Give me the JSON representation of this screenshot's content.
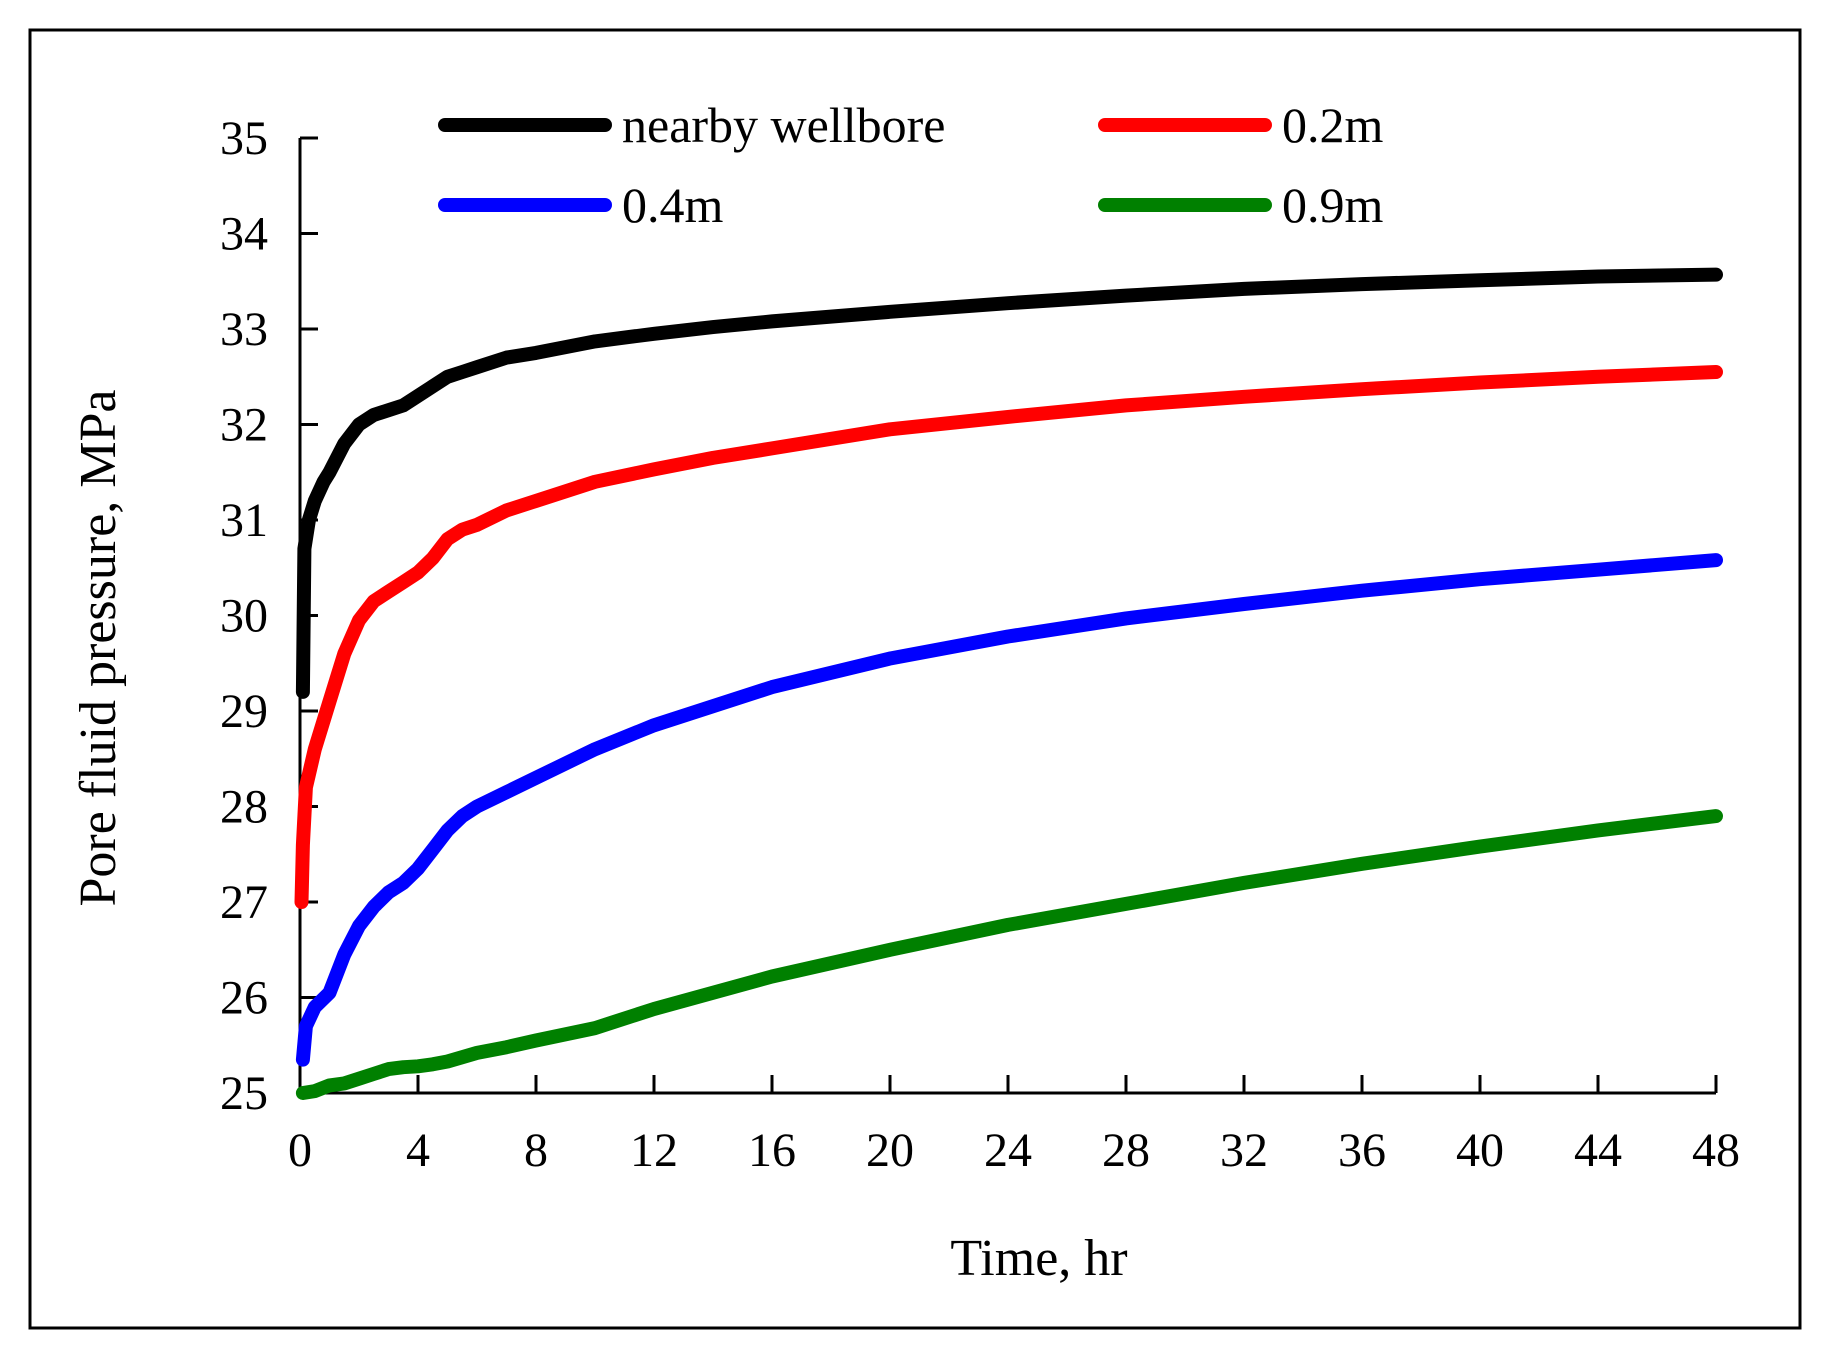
{
  "chart_data": {
    "type": "line",
    "title": "",
    "xlabel": "Time, hr",
    "ylabel": "Pore fluid pressure, MPa",
    "xlim": [
      0,
      48
    ],
    "ylim": [
      25,
      35
    ],
    "xticks": [
      0,
      4,
      8,
      12,
      16,
      20,
      24,
      28,
      32,
      36,
      40,
      44,
      48
    ],
    "yticks": [
      25,
      26,
      27,
      28,
      29,
      30,
      31,
      32,
      33,
      34,
      35
    ],
    "grid": false,
    "legend_position": "top",
    "series": [
      {
        "name": "nearby wellbore",
        "color": "#000000",
        "x": [
          0.1,
          0.15,
          0.3,
          0.5,
          0.8,
          1.0,
          1.5,
          2.0,
          2.5,
          3.0,
          3.5,
          4.0,
          4.5,
          5.0,
          5.5,
          6.0,
          7.0,
          8.0,
          10.0,
          12.0,
          14.0,
          16.0,
          20.0,
          24.0,
          28.0,
          32.0,
          36.0,
          40.0,
          44.0,
          48.0
        ],
        "y": [
          29.2,
          30.7,
          31.0,
          31.2,
          31.4,
          31.5,
          31.8,
          32.0,
          32.1,
          32.15,
          32.2,
          32.3,
          32.4,
          32.5,
          32.55,
          32.6,
          32.7,
          32.75,
          32.87,
          32.95,
          33.02,
          33.08,
          33.18,
          33.27,
          33.35,
          33.42,
          33.47,
          33.51,
          33.55,
          33.57
        ]
      },
      {
        "name": "0.2m",
        "color": "#ff0000",
        "x": [
          0.05,
          0.1,
          0.2,
          0.5,
          1.0,
          1.5,
          2.0,
          2.5,
          3.0,
          3.5,
          4.0,
          4.5,
          5.0,
          5.5,
          6.0,
          7.0,
          8.0,
          10.0,
          12.0,
          14.0,
          16.0,
          20.0,
          24.0,
          28.0,
          32.0,
          36.0,
          40.0,
          44.0,
          48.0
        ],
        "y": [
          27.0,
          27.6,
          28.2,
          28.6,
          29.1,
          29.6,
          29.95,
          30.15,
          30.25,
          30.35,
          30.45,
          30.6,
          30.8,
          30.9,
          30.95,
          31.1,
          31.2,
          31.4,
          31.53,
          31.65,
          31.75,
          31.95,
          32.08,
          32.2,
          32.29,
          32.37,
          32.44,
          32.5,
          32.55
        ]
      },
      {
        "name": "0.4m",
        "color": "#0000ff",
        "x": [
          0.1,
          0.2,
          0.5,
          1.0,
          1.5,
          2.0,
          2.5,
          3.0,
          3.5,
          4.0,
          4.5,
          5.0,
          5.5,
          6.0,
          7.0,
          8.0,
          10.0,
          12.0,
          14.0,
          16.0,
          20.0,
          24.0,
          28.0,
          32.0,
          36.0,
          40.0,
          44.0,
          48.0
        ],
        "y": [
          25.35,
          25.7,
          25.9,
          26.05,
          26.45,
          26.75,
          26.95,
          27.1,
          27.2,
          27.35,
          27.55,
          27.75,
          27.9,
          28.0,
          28.15,
          28.3,
          28.6,
          28.85,
          29.05,
          29.25,
          29.55,
          29.78,
          29.97,
          30.12,
          30.26,
          30.38,
          30.48,
          30.58
        ]
      },
      {
        "name": "0.9m",
        "color": "#008000",
        "x": [
          0.1,
          0.5,
          1.0,
          1.5,
          2.0,
          2.5,
          3.0,
          3.5,
          4.0,
          4.5,
          5.0,
          6.0,
          7.0,
          8.0,
          10.0,
          12.0,
          14.0,
          16.0,
          20.0,
          24.0,
          28.0,
          32.0,
          36.0,
          40.0,
          44.0,
          48.0
        ],
        "y": [
          25.0,
          25.02,
          25.08,
          25.1,
          25.15,
          25.2,
          25.25,
          25.27,
          25.28,
          25.3,
          25.33,
          25.42,
          25.48,
          25.55,
          25.68,
          25.88,
          26.05,
          26.22,
          26.5,
          26.76,
          26.98,
          27.2,
          27.4,
          27.58,
          27.75,
          27.9
        ]
      }
    ]
  }
}
